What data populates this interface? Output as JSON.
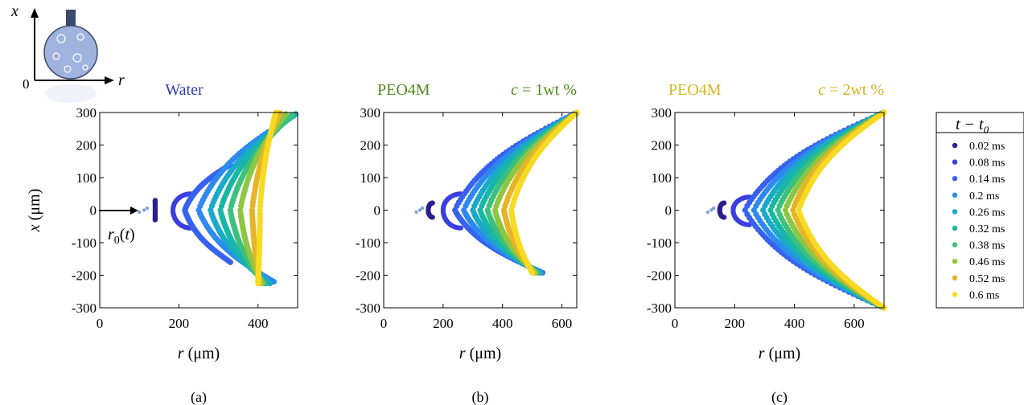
{
  "chart_data": [
    {
      "type": "scatter",
      "panel_label": "(a)",
      "title": "Water",
      "title_color": "#2c3fb5",
      "title_right": "",
      "xlabel": "r (μm)",
      "ylabel": "x (μm)",
      "xlim": [
        0,
        500
      ],
      "ylim": [
        -300,
        300
      ],
      "xticks": [
        "0",
        "200",
        "400"
      ],
      "xtick_values": [
        0,
        200,
        400
      ],
      "yticks": [
        "-300",
        "-200",
        "-100",
        "0",
        "100",
        "200",
        "300"
      ],
      "ytick_values": [
        -300,
        -200,
        -100,
        0,
        100,
        200,
        300
      ],
      "annotation": "r0(t)",
      "series": [
        {
          "name": "0.02 ms",
          "apex_r": 140,
          "half_width": 25,
          "top": [
            140,
            30
          ],
          "bottom": [
            140,
            -30
          ]
        },
        {
          "name": "0.08 ms",
          "apex_r": 185,
          "top": [
            230,
            50
          ],
          "bottom": [
            230,
            -55
          ]
        },
        {
          "name": "0.14 ms",
          "apex_r": 215,
          "top": [
            330,
            140
          ],
          "bottom": [
            330,
            -160
          ]
        },
        {
          "name": "0.2 ms",
          "apex_r": 250,
          "top": [
            490,
            290
          ],
          "bottom": [
            440,
            -220
          ]
        },
        {
          "name": "0.26 ms",
          "apex_r": 280,
          "top": [
            495,
            295
          ],
          "bottom": [
            430,
            -225
          ]
        },
        {
          "name": "0.32 ms",
          "apex_r": 305,
          "top": [
            490,
            292
          ],
          "bottom": [
            420,
            -225
          ]
        },
        {
          "name": "0.38 ms",
          "apex_r": 330,
          "top": [
            485,
            292
          ],
          "bottom": [
            415,
            -225
          ]
        },
        {
          "name": "0.46 ms",
          "apex_r": 355,
          "top": [
            470,
            295
          ],
          "bottom": [
            410,
            -225
          ]
        },
        {
          "name": "0.52 ms",
          "apex_r": 385,
          "top": [
            455,
            298
          ],
          "bottom": [
            405,
            -225
          ]
        },
        {
          "name": "0.6 ms",
          "apex_r": 405,
          "top": [
            445,
            300
          ],
          "bottom": [
            400,
            -225
          ]
        }
      ]
    },
    {
      "type": "scatter",
      "panel_label": "(b)",
      "title": "PEO4M",
      "title_color": "#4f8a1e",
      "title_right": "c = 1wt %",
      "xlabel": "r (μm)",
      "ylabel": "",
      "xlim": [
        0,
        650
      ],
      "ylim": [
        -300,
        300
      ],
      "xticks": [
        "0",
        "200",
        "400",
        "600"
      ],
      "xtick_values": [
        0,
        200,
        400,
        600
      ],
      "yticks": [
        "-300",
        "-200",
        "-100",
        "0",
        "100",
        "200",
        "300"
      ],
      "ytick_values": [
        -300,
        -200,
        -100,
        0,
        100,
        200,
        300
      ],
      "series": [
        {
          "name": "0.02 ms",
          "apex_r": 150,
          "top": [
            165,
            22
          ],
          "bottom": [
            165,
            -22
          ]
        },
        {
          "name": "0.08 ms",
          "apex_r": 200,
          "top": [
            260,
            50
          ],
          "bottom": [
            260,
            -55
          ]
        },
        {
          "name": "0.14 ms",
          "apex_r": 240,
          "top": [
            640,
            295
          ],
          "bottom": [
            535,
            -192
          ]
        },
        {
          "name": "0.2 ms",
          "apex_r": 270,
          "top": [
            645,
            297
          ],
          "bottom": [
            530,
            -192
          ]
        },
        {
          "name": "0.26 ms",
          "apex_r": 300,
          "top": [
            648,
            298
          ],
          "bottom": [
            525,
            -192
          ]
        },
        {
          "name": "0.32 ms",
          "apex_r": 325,
          "top": [
            650,
            298
          ],
          "bottom": [
            520,
            -192
          ]
        },
        {
          "name": "0.38 ms",
          "apex_r": 350,
          "top": [
            650,
            299
          ],
          "bottom": [
            515,
            -192
          ]
        },
        {
          "name": "0.46 ms",
          "apex_r": 375,
          "top": [
            650,
            299
          ],
          "bottom": [
            510,
            -192
          ]
        },
        {
          "name": "0.52 ms",
          "apex_r": 405,
          "top": [
            650,
            300
          ],
          "bottom": [
            505,
            -192
          ]
        },
        {
          "name": "0.6 ms",
          "apex_r": 430,
          "top": [
            650,
            300
          ],
          "bottom": [
            500,
            -192
          ]
        }
      ]
    },
    {
      "type": "scatter",
      "panel_label": "(c)",
      "title": "PEO4M",
      "title_color": "#d4b61e",
      "title_right": "c = 2wt %",
      "xlabel": "r (μm)",
      "ylabel": "",
      "xlim": [
        0,
        700
      ],
      "ylim": [
        -300,
        300
      ],
      "xticks": [
        "0",
        "200",
        "400",
        "600"
      ],
      "xtick_values": [
        0,
        200,
        400,
        600
      ],
      "yticks": [
        "-300",
        "-200",
        "-100",
        "0",
        "100",
        "200",
        "300"
      ],
      "ytick_values": [
        -300,
        -200,
        -100,
        0,
        100,
        200,
        300
      ],
      "series": [
        {
          "name": "0.02 ms",
          "apex_r": 150,
          "top": [
            165,
            22
          ],
          "bottom": [
            165,
            -22
          ]
        },
        {
          "name": "0.08 ms",
          "apex_r": 195,
          "top": [
            250,
            40
          ],
          "bottom": [
            250,
            -45
          ]
        },
        {
          "name": "0.14 ms",
          "apex_r": 235,
          "top": [
            690,
            296
          ],
          "bottom": [
            690,
            -296
          ]
        },
        {
          "name": "0.2 ms",
          "apex_r": 265,
          "top": [
            692,
            297
          ],
          "bottom": [
            692,
            -297
          ]
        },
        {
          "name": "0.26 ms",
          "apex_r": 295,
          "top": [
            694,
            298
          ],
          "bottom": [
            694,
            -298
          ]
        },
        {
          "name": "0.32 ms",
          "apex_r": 320,
          "top": [
            695,
            298
          ],
          "bottom": [
            695,
            -298
          ]
        },
        {
          "name": "0.38 ms",
          "apex_r": 345,
          "top": [
            696,
            299
          ],
          "bottom": [
            696,
            -299
          ]
        },
        {
          "name": "0.46 ms",
          "apex_r": 370,
          "top": [
            698,
            299
          ],
          "bottom": [
            698,
            -299
          ]
        },
        {
          "name": "0.52 ms",
          "apex_r": 395,
          "top": [
            699,
            300
          ],
          "bottom": [
            699,
            -300
          ]
        },
        {
          "name": "0.6 ms",
          "apex_r": 415,
          "top": [
            700,
            300
          ],
          "bottom": [
            700,
            -300
          ]
        }
      ]
    }
  ],
  "legend": {
    "title": "t − t0",
    "title_main": "t − t",
    "title_sub": "0",
    "entries": [
      "0.02 ms",
      "0.08 ms",
      "0.14 ms",
      "0.2 ms",
      "0.26 ms",
      "0.32 ms",
      "0.38 ms",
      "0.46 ms",
      "0.52 ms",
      "0.6 ms"
    ],
    "colors": [
      "#2d1f8f",
      "#3b3fe0",
      "#3762f0",
      "#2d89ef",
      "#1aa9c9",
      "#18b6a4",
      "#3cc17c",
      "#8ec641",
      "#e6b429",
      "#f7da22"
    ]
  },
  "inset": {
    "x_label": "x",
    "r_label": "r",
    "origin_label": "0"
  }
}
